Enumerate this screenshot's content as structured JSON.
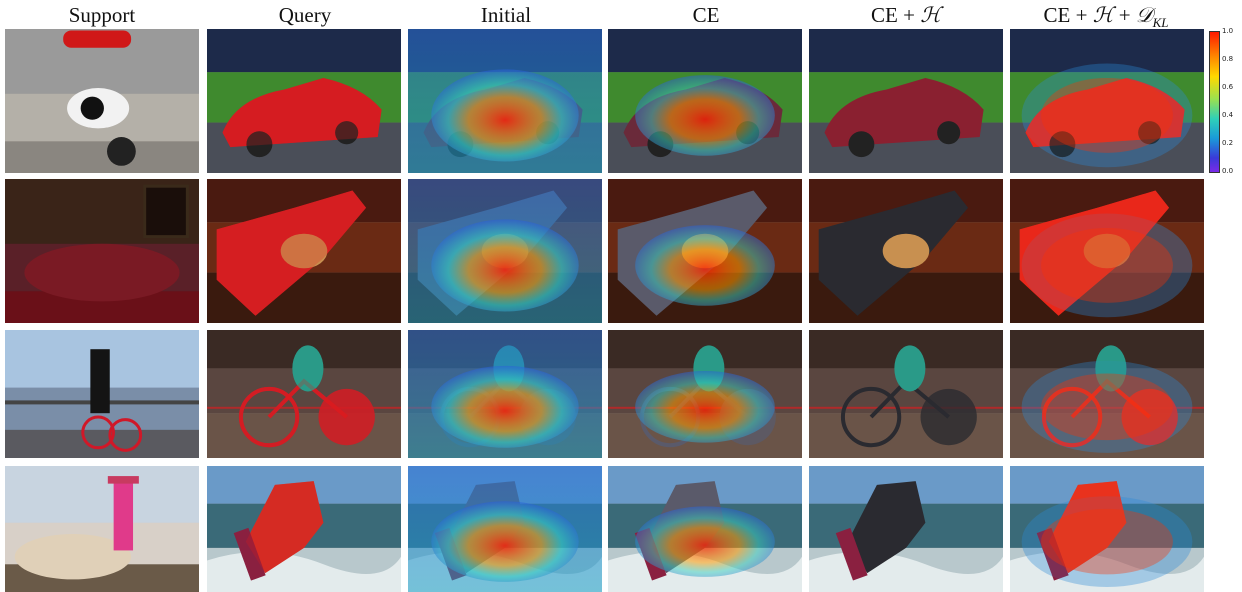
{
  "columns": [
    {
      "key": "support",
      "label": "Support"
    },
    {
      "key": "query",
      "label": "Query"
    },
    {
      "key": "initial",
      "label": "Initial"
    },
    {
      "key": "ce",
      "label": "CE"
    },
    {
      "key": "ce_h",
      "label": "CE + H"
    },
    {
      "key": "ce_h_kl",
      "label": "CE + H + D_KL"
    }
  ],
  "rows": [
    {
      "support": "cow-and-motorbike-scene",
      "query": "red-sports-car",
      "colors": {
        "bg_top": "#1d2a4a",
        "bg_mid": "#3f8a2e",
        "bg_bot": "#4a4e58",
        "object": "#c8202a"
      }
    },
    {
      "support": "dining-table-scene",
      "query": "dog-on-red-chair",
      "colors": {
        "bg_top": "#4a1a10",
        "bg_mid": "#6a2a14",
        "bg_bot": "#3a1a0e",
        "object": "#c8242a"
      }
    },
    {
      "support": "man-with-bicycle-on-pier",
      "query": "cyclist-on-track",
      "colors": {
        "bg_top": "#3a2a24",
        "bg_mid": "#5a4640",
        "bg_bot": "#6a5448",
        "object": "#c42030"
      }
    },
    {
      "support": "cowgirl-on-horse",
      "query": "kitesurfer-on-waves",
      "colors": {
        "bg_top": "#6a9ac8",
        "bg_mid": "#3a6a78",
        "bg_bot": "#b8c8cc",
        "object": "#c84030"
      }
    }
  ],
  "colorbar": {
    "ticks": [
      "1.0",
      "0.8",
      "0.6",
      "0.4",
      "0.2",
      "0.0"
    ]
  }
}
